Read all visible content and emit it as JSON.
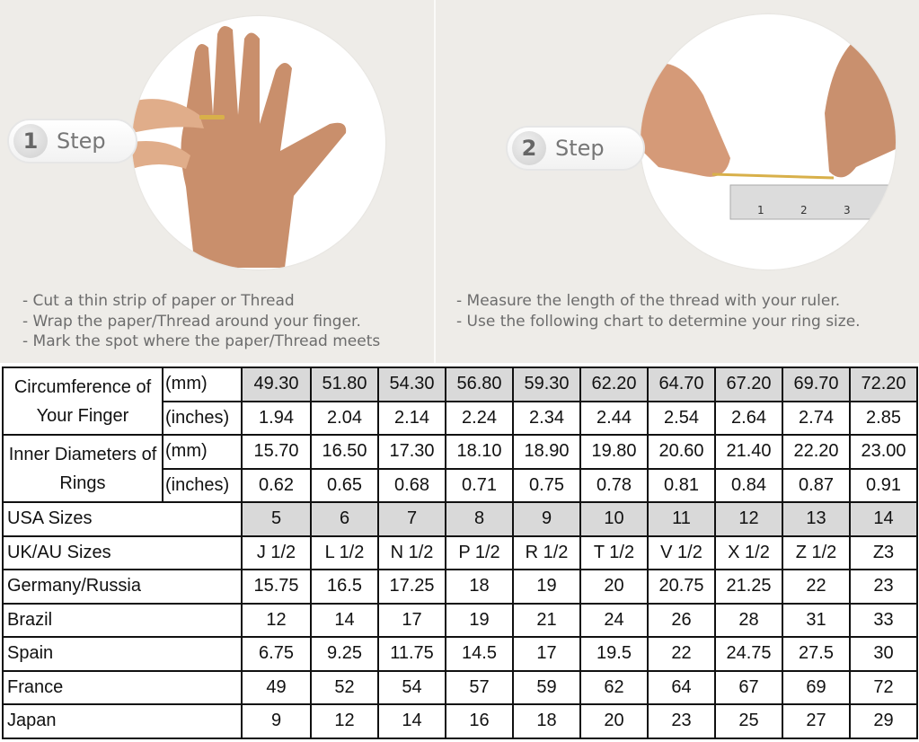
{
  "steps": [
    {
      "number": "1",
      "label": "Step",
      "instructions": [
        "- Cut a thin strip of paper or Thread",
        "- Wrap the paper/Thread around your finger.",
        "- Mark the spot where the paper/Thread meets"
      ]
    },
    {
      "number": "2",
      "label": "Step",
      "instructions": [
        "- Measure the length of the thread with your ruler.",
        "- Use the following chart to determine your ring size."
      ]
    }
  ],
  "ruler_marks": [
    "1",
    "2",
    "3"
  ],
  "table": {
    "groups": [
      {
        "label": "Circumference of Your Finger",
        "rows": [
          {
            "unit": "(mm)",
            "shaded": true,
            "values": [
              "49.30",
              "51.80",
              "54.30",
              "56.80",
              "59.30",
              "62.20",
              "64.70",
              "67.20",
              "69.70",
              "72.20"
            ]
          },
          {
            "unit": "(inches)",
            "shaded": false,
            "values": [
              "1.94",
              "2.04",
              "2.14",
              "2.24",
              "2.34",
              "2.44",
              "2.54",
              "2.64",
              "2.74",
              "2.85"
            ]
          }
        ]
      },
      {
        "label": "Inner Diameters of Rings",
        "rows": [
          {
            "unit": "(mm)",
            "shaded": false,
            "values": [
              "15.70",
              "16.50",
              "17.30",
              "18.10",
              "18.90",
              "19.80",
              "20.60",
              "21.40",
              "22.20",
              "23.00"
            ]
          },
          {
            "unit": "(inches)",
            "shaded": false,
            "values": [
              "0.62",
              "0.65",
              "0.68",
              "0.71",
              "0.75",
              "0.78",
              "0.81",
              "0.84",
              "0.87",
              "0.91"
            ]
          }
        ]
      }
    ],
    "rows": [
      {
        "label": "USA Sizes",
        "shaded": true,
        "values": [
          "5",
          "6",
          "7",
          "8",
          "9",
          "10",
          "11",
          "12",
          "13",
          "14"
        ]
      },
      {
        "label": "UK/AU Sizes",
        "shaded": false,
        "values": [
          "J 1/2",
          "L 1/2",
          "N 1/2",
          "P 1/2",
          "R 1/2",
          "T 1/2",
          "V 1/2",
          "X 1/2",
          "Z 1/2",
          "Z3"
        ]
      },
      {
        "label": "Germany/Russia",
        "shaded": false,
        "values": [
          "15.75",
          "16.5",
          "17.25",
          "18",
          "19",
          "20",
          "20.75",
          "21.25",
          "22",
          "23"
        ]
      },
      {
        "label": "Brazil",
        "shaded": false,
        "values": [
          "12",
          "14",
          "17",
          "19",
          "21",
          "24",
          "26",
          "28",
          "31",
          "33"
        ]
      },
      {
        "label": "Spain",
        "shaded": false,
        "values": [
          "6.75",
          "9.25",
          "11.75",
          "14.5",
          "17",
          "19.5",
          "22",
          "24.75",
          "27.5",
          "30"
        ]
      },
      {
        "label": "France",
        "shaded": false,
        "values": [
          "49",
          "52",
          "54",
          "57",
          "59",
          "62",
          "64",
          "67",
          "69",
          "72"
        ]
      },
      {
        "label": "Japan",
        "shaded": false,
        "values": [
          "9",
          "12",
          "14",
          "16",
          "18",
          "20",
          "23",
          "25",
          "27",
          "29"
        ]
      }
    ]
  },
  "colors": {
    "background": "#eeece8",
    "shaded_cell": "#d9d9d9",
    "border": "#111111",
    "skin": "#d9a07e"
  }
}
